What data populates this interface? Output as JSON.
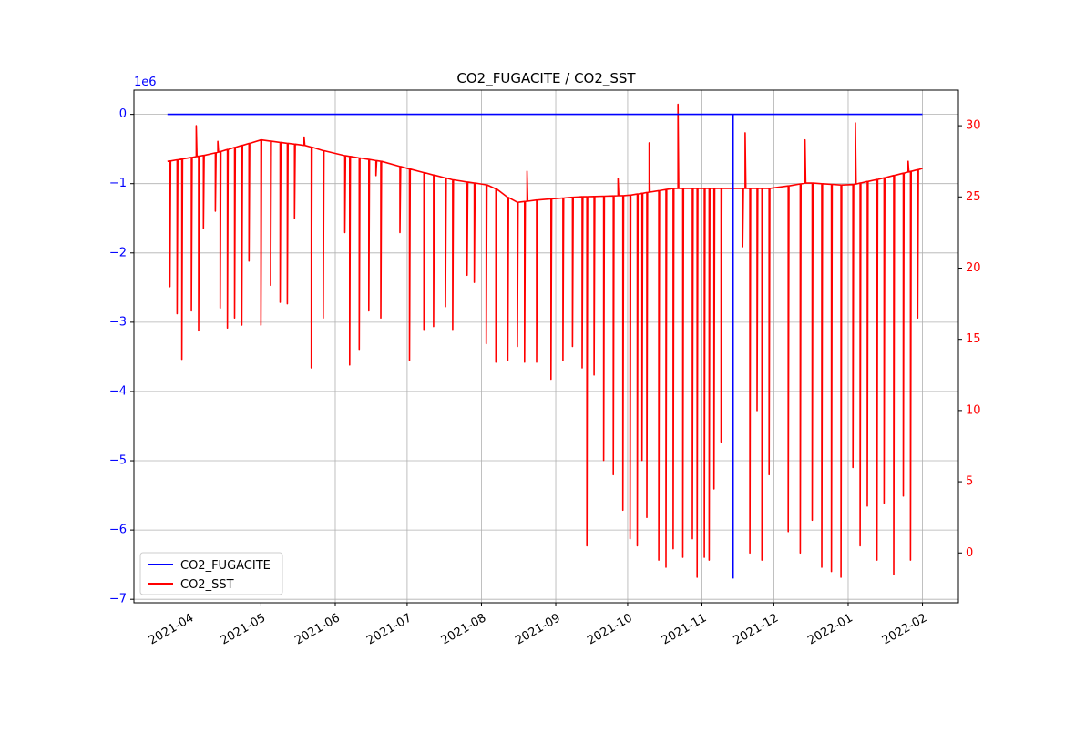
{
  "chart_data": {
    "type": "line",
    "title": "CO2_FUGACITE / CO2_SST",
    "xlabel": "",
    "x_range": [
      "2021-03-09",
      "2022-02-16"
    ],
    "x_ticks": [
      "2021-04",
      "2021-05",
      "2021-06",
      "2021-07",
      "2021-08",
      "2021-09",
      "2021-10",
      "2021-11",
      "2021-12",
      "2022-01",
      "2022-02"
    ],
    "grid": true,
    "legend_position": "lower-left",
    "left_axis": {
      "label": "",
      "color": "#0000ff",
      "offset_text": "1e6",
      "ylim": [
        -7.05,
        0.35
      ],
      "ticks": [
        0,
        -1,
        -2,
        -3,
        -4,
        -5,
        -6,
        -7
      ],
      "tick_labels": [
        "0",
        "−1",
        "−2",
        "−3",
        "−4",
        "−5",
        "−6",
        "−7"
      ]
    },
    "right_axis": {
      "label": "",
      "color": "#ff0000",
      "ylim": [
        -3.5,
        32.5
      ],
      "ticks": [
        0,
        5,
        10,
        15,
        20,
        25,
        30
      ],
      "tick_labels": [
        "0",
        "5",
        "10",
        "15",
        "20",
        "25",
        "30"
      ]
    },
    "series": [
      {
        "name": "CO2_FUGACITE",
        "axis": "left",
        "color": "#0000ff",
        "points": [
          [
            "2021-03-23",
            0
          ],
          [
            "2021-11-01",
            0
          ],
          [
            "2021-11-14",
            0
          ],
          [
            "2021-11-14",
            -6.7
          ],
          [
            "2021-11-14",
            0
          ],
          [
            "2022-02-01",
            0
          ]
        ]
      },
      {
        "name": "CO2_SST",
        "axis": "right",
        "color": "#ff0000",
        "baseline": [
          [
            "2021-03-23",
            27.5
          ],
          [
            "2021-04-10",
            28.0
          ],
          [
            "2021-05-01",
            29.0
          ],
          [
            "2021-05-20",
            28.6
          ],
          [
            "2021-06-01",
            28.0
          ],
          [
            "2021-06-20",
            27.5
          ],
          [
            "2021-07-01",
            27.0
          ],
          [
            "2021-07-20",
            26.2
          ],
          [
            "2021-08-05",
            25.8
          ],
          [
            "2021-08-15",
            24.6
          ],
          [
            "2021-08-25",
            24.8
          ],
          [
            "2021-09-10",
            25.0
          ],
          [
            "2021-10-01",
            25.1
          ],
          [
            "2021-10-20",
            25.6
          ],
          [
            "2021-11-10",
            25.6
          ],
          [
            "2021-12-01",
            25.6
          ],
          [
            "2021-12-15",
            26.0
          ],
          [
            "2022-01-01",
            25.8
          ],
          [
            "2022-01-15",
            26.3
          ],
          [
            "2022-02-01",
            27.0
          ]
        ],
        "spikes": [
          [
            "2021-03-24",
            18.7
          ],
          [
            "2021-03-27",
            16.8
          ],
          [
            "2021-03-29",
            13.6
          ],
          [
            "2021-04-02",
            17.0
          ],
          [
            "2021-04-04",
            30.0
          ],
          [
            "2021-04-05",
            15.6
          ],
          [
            "2021-04-07",
            22.8
          ],
          [
            "2021-04-12",
            24.0
          ],
          [
            "2021-04-14",
            17.2
          ],
          [
            "2021-04-17",
            15.8
          ],
          [
            "2021-04-20",
            16.5
          ],
          [
            "2021-04-23",
            16.0
          ],
          [
            "2021-04-26",
            20.5
          ],
          [
            "2021-05-01",
            16.0
          ],
          [
            "2021-05-05",
            18.8
          ],
          [
            "2021-05-09",
            17.6
          ],
          [
            "2021-05-12",
            17.5
          ],
          [
            "2021-05-15",
            23.5
          ],
          [
            "2021-05-22",
            13.0
          ],
          [
            "2021-05-27",
            16.5
          ],
          [
            "2021-06-05",
            22.5
          ],
          [
            "2021-06-07",
            13.2
          ],
          [
            "2021-06-11",
            14.3
          ],
          [
            "2021-06-15",
            17.0
          ],
          [
            "2021-06-20",
            16.5
          ],
          [
            "2021-06-28",
            22.5
          ],
          [
            "2021-07-02",
            13.5
          ],
          [
            "2021-07-08",
            15.7
          ],
          [
            "2021-07-12",
            15.9
          ],
          [
            "2021-07-17",
            17.3
          ],
          [
            "2021-07-20",
            15.7
          ],
          [
            "2021-07-26",
            19.5
          ],
          [
            "2021-07-29",
            19.0
          ],
          [
            "2021-08-03",
            14.7
          ],
          [
            "2021-08-07",
            13.4
          ],
          [
            "2021-08-12",
            13.5
          ],
          [
            "2021-08-16",
            14.5
          ],
          [
            "2021-08-19",
            13.4
          ],
          [
            "2021-08-24",
            13.4
          ],
          [
            "2021-08-30",
            12.2
          ],
          [
            "2021-09-04",
            13.5
          ],
          [
            "2021-09-08",
            14.5
          ],
          [
            "2021-09-12",
            13.0
          ],
          [
            "2021-09-14",
            0.5
          ],
          [
            "2021-09-17",
            12.5
          ],
          [
            "2021-09-21",
            6.5
          ],
          [
            "2021-09-25",
            5.5
          ],
          [
            "2021-09-29",
            3.0
          ],
          [
            "2021-10-02",
            1.0
          ],
          [
            "2021-10-05",
            0.5
          ],
          [
            "2021-10-07",
            6.5
          ],
          [
            "2021-10-09",
            2.5
          ],
          [
            "2021-10-14",
            -0.5
          ],
          [
            "2021-10-17",
            -1.0
          ],
          [
            "2021-10-20",
            0.3
          ],
          [
            "2021-10-24",
            -0.3
          ],
          [
            "2021-10-28",
            1.0
          ],
          [
            "2021-10-30",
            -1.7
          ],
          [
            "2021-11-02",
            -0.3
          ],
          [
            "2021-11-04",
            -0.5
          ],
          [
            "2021-11-06",
            4.5
          ],
          [
            "2021-11-09",
            7.8
          ],
          [
            "2021-11-18",
            21.5
          ],
          [
            "2021-11-21",
            -0.0
          ],
          [
            "2021-11-24",
            10.0
          ],
          [
            "2021-11-26",
            -0.5
          ],
          [
            "2021-11-29",
            5.5
          ],
          [
            "2021-12-07",
            1.5
          ],
          [
            "2021-12-12",
            -0.0
          ],
          [
            "2021-12-17",
            2.3
          ],
          [
            "2021-12-21",
            -1.0
          ],
          [
            "2021-12-25",
            -1.3
          ],
          [
            "2021-12-29",
            -1.7
          ],
          [
            "2022-01-03",
            6.0
          ],
          [
            "2022-01-06",
            0.5
          ],
          [
            "2022-01-09",
            3.3
          ],
          [
            "2022-01-13",
            -0.5
          ],
          [
            "2022-01-16",
            3.5
          ],
          [
            "2022-01-20",
            -1.5
          ],
          [
            "2022-01-24",
            4.0
          ],
          [
            "2022-01-27",
            -0.5
          ],
          [
            "2022-01-30",
            16.5
          ]
        ],
        "peaks": [
          [
            "2021-04-04",
            30.0
          ],
          [
            "2021-04-13",
            28.9
          ],
          [
            "2021-05-19",
            29.2
          ],
          [
            "2021-06-18",
            26.5
          ],
          [
            "2021-08-20",
            26.8
          ],
          [
            "2021-09-27",
            26.3
          ],
          [
            "2021-10-10",
            28.8
          ],
          [
            "2021-10-22",
            31.5
          ],
          [
            "2021-11-19",
            29.5
          ],
          [
            "2021-12-14",
            29.0
          ],
          [
            "2022-01-04",
            30.2
          ],
          [
            "2022-01-26",
            27.5
          ]
        ]
      }
    ]
  }
}
